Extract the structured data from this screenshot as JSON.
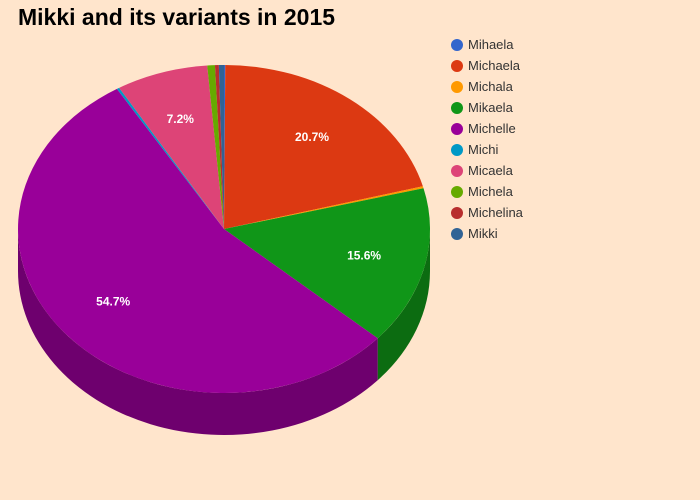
{
  "chart_data": {
    "type": "pie",
    "title": "Mikki and its variants in 2015",
    "categories": [
      "Mihaela",
      "Michaela",
      "Michala",
      "Mikaela",
      "Michelle",
      "Michi",
      "Micaela",
      "Michela",
      "Michelina",
      "Mikki"
    ],
    "values": [
      0.1,
      20.7,
      0.2,
      15.6,
      54.7,
      0.2,
      7.2,
      0.6,
      0.3,
      0.4
    ],
    "data_labels": [
      "",
      "20.7%",
      "",
      "15.6%",
      "54.7%",
      "",
      "7.2%",
      "",
      "",
      ""
    ],
    "colors": [
      "#3366cc",
      "#dc3912",
      "#ff9900",
      "#109618",
      "#990099",
      "#0099c6",
      "#dd4477",
      "#66aa00",
      "#b82e2e",
      "#316395"
    ],
    "legend_position": "right",
    "style": "3d"
  }
}
